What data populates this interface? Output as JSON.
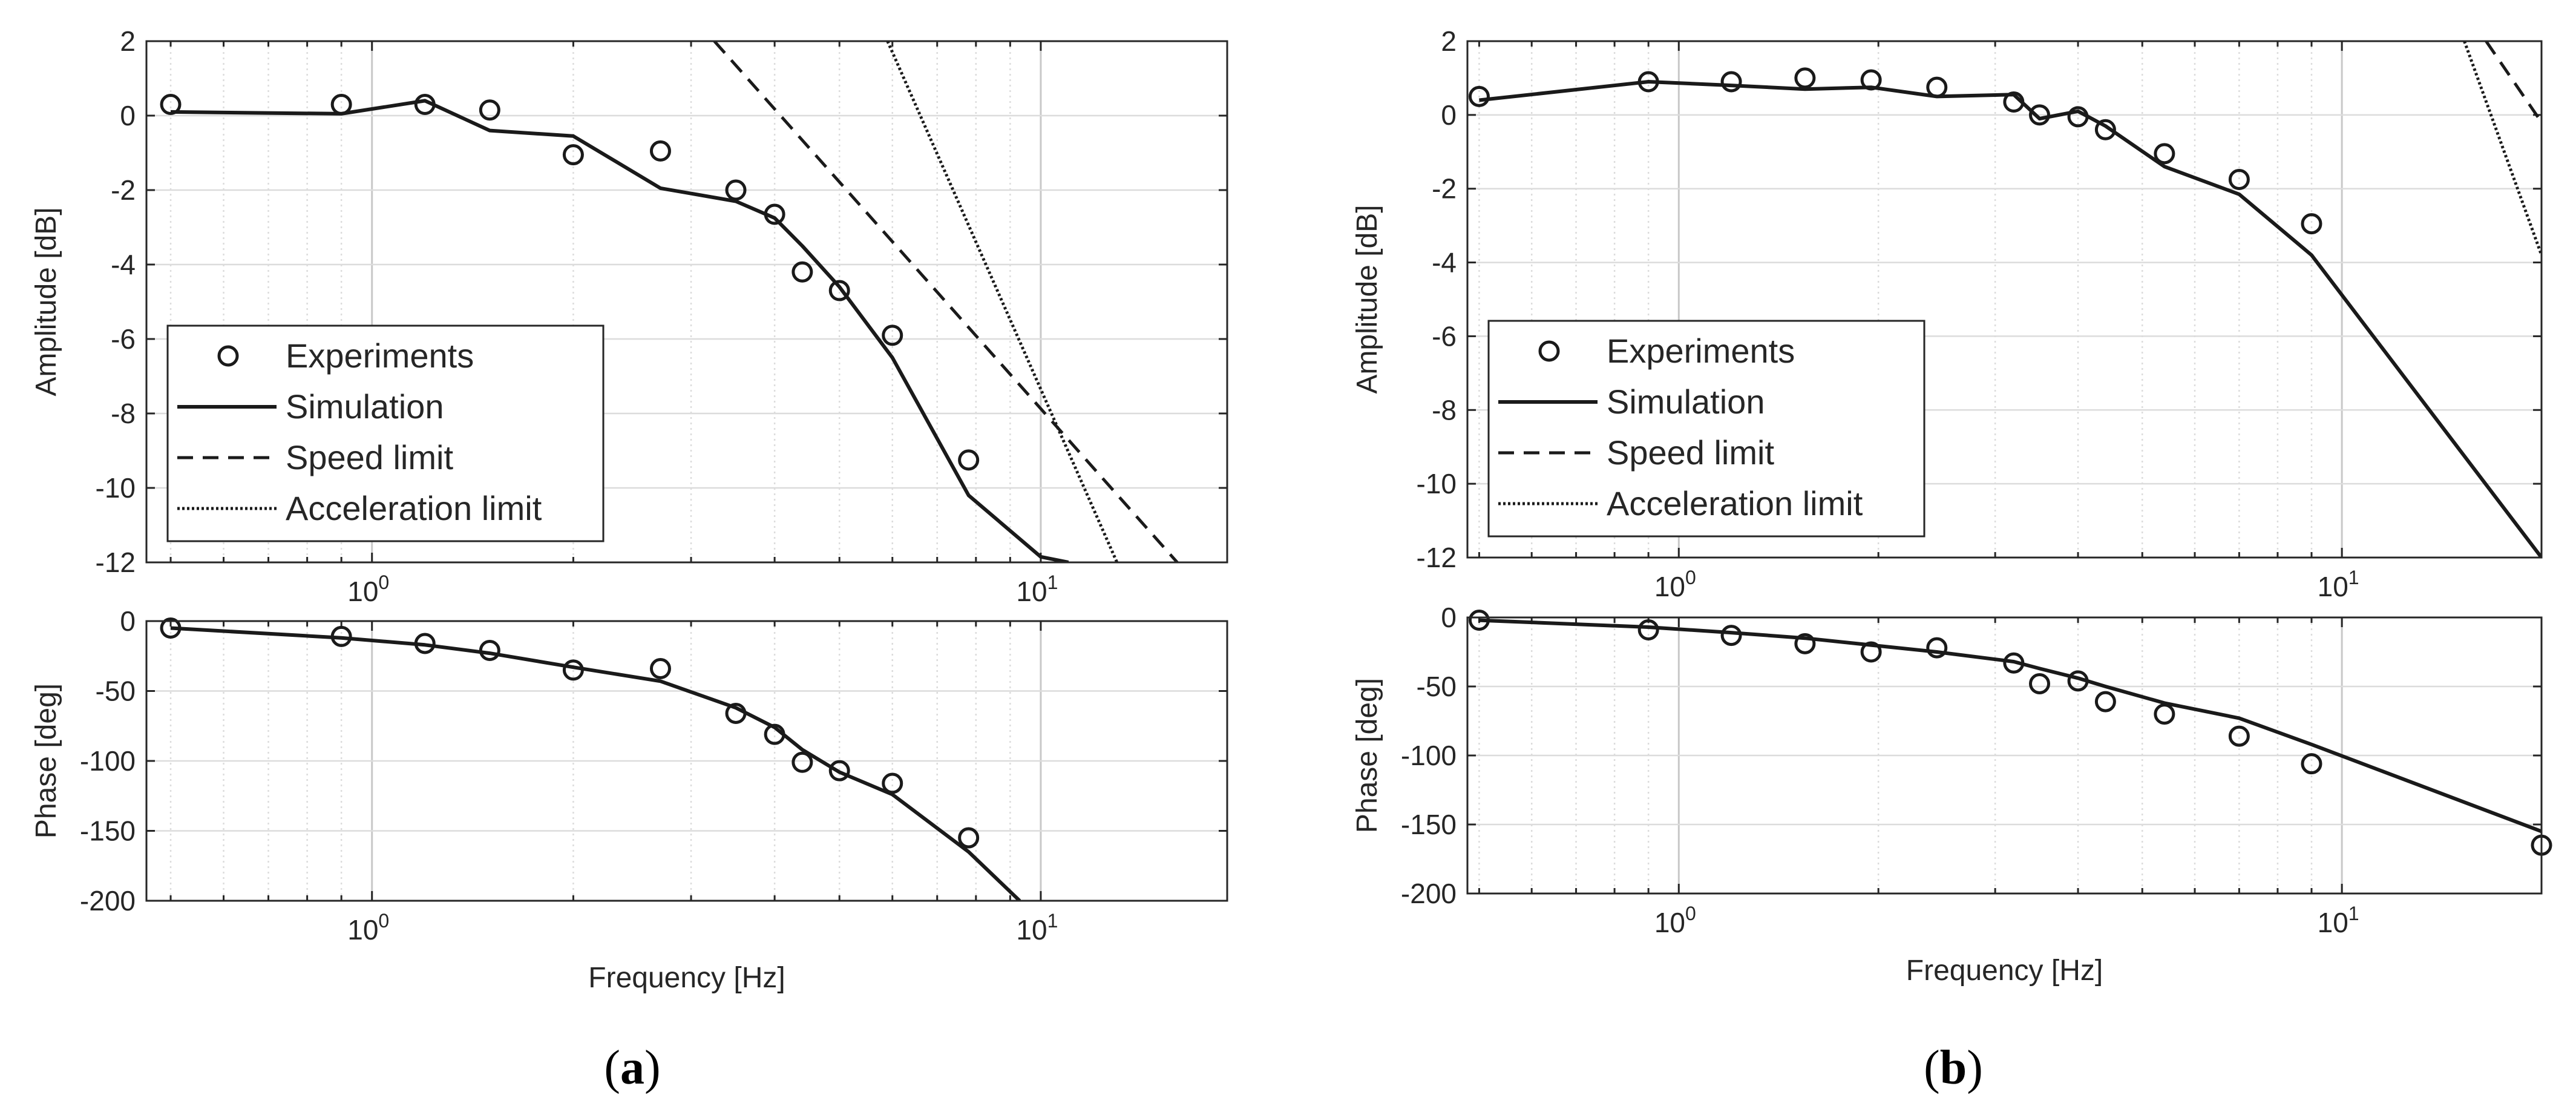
{
  "figure": {
    "panels": [
      {
        "label_open": "(",
        "label_letter": "a",
        "label_close": ")"
      },
      {
        "label_open": "(",
        "label_letter": "b",
        "label_close": ")"
      }
    ]
  },
  "colors": {
    "line": "#1a1a1a",
    "axis": "#262626",
    "grid": "#d9d9d9",
    "background": "#ffffff"
  },
  "chart_data": [
    {
      "id": "a-amplitude",
      "type": "line",
      "panel": "a",
      "xscale": "log",
      "xlim": [
        0.46,
        19
      ],
      "ylim": [
        -12,
        2
      ],
      "yticks": [
        2,
        0,
        -2,
        -4,
        -6,
        -8,
        -10,
        -12
      ],
      "xtick_labels": [
        {
          "base": "10",
          "exp": "0",
          "value": 1
        },
        {
          "base": "10",
          "exp": "1",
          "value": 10
        }
      ],
      "ylabel": "Amplitude [dB]",
      "xlabel": "",
      "grid": true,
      "legend": {
        "position": "bottom-left",
        "entries": [
          {
            "name": "Experiments",
            "style": "marker"
          },
          {
            "name": "Simulation",
            "style": "solid"
          },
          {
            "name": "Speed limit",
            "style": "dashed"
          },
          {
            "name": "Acceleration limit",
            "style": "dotted"
          }
        ]
      },
      "series": [
        {
          "name": "Experiments",
          "style": "marker",
          "x": [
            0.5,
            0.9,
            1.2,
            1.5,
            2.0,
            2.7,
            3.5,
            4.0,
            4.4,
            5.0,
            6.0,
            7.8
          ],
          "y": [
            0.3,
            0.3,
            0.3,
            0.15,
            -1.05,
            -0.95,
            -2.0,
            -2.65,
            -4.2,
            -4.7,
            -5.9,
            -9.25
          ]
        },
        {
          "name": "Simulation",
          "style": "solid",
          "x": [
            0.5,
            0.9,
            1.2,
            1.5,
            2.0,
            2.7,
            3.5,
            4.0,
            4.4,
            5.0,
            6.0,
            7.8,
            10.0,
            11.0
          ],
          "y": [
            0.1,
            0.05,
            0.4,
            -0.4,
            -0.55,
            -1.95,
            -2.3,
            -2.75,
            -3.5,
            -4.6,
            -6.5,
            -10.2,
            -11.85,
            -12.0
          ]
        },
        {
          "name": "Speed limit",
          "style": "dashed",
          "x": [
            3.25,
            16.0
          ],
          "y": [
            2.0,
            -12.0
          ]
        },
        {
          "name": "Acceleration limit",
          "style": "dotted",
          "x": [
            5.9,
            13.0
          ],
          "y": [
            2.0,
            -12.0
          ]
        }
      ]
    },
    {
      "id": "a-phase",
      "type": "line",
      "panel": "a",
      "xscale": "log",
      "xlim": [
        0.46,
        19
      ],
      "ylim": [
        -200,
        0
      ],
      "yticks": [
        0,
        -50,
        -100,
        -150,
        -200
      ],
      "xtick_labels": [
        {
          "base": "10",
          "exp": "0",
          "value": 1
        },
        {
          "base": "10",
          "exp": "1",
          "value": 10
        }
      ],
      "ylabel": "Phase [deg]",
      "xlabel": "Frequency [Hz]",
      "grid": true,
      "series": [
        {
          "name": "Experiments",
          "style": "marker",
          "x": [
            0.5,
            0.9,
            1.2,
            1.5,
            2.0,
            2.7,
            3.5,
            4.0,
            4.4,
            5.0,
            6.0,
            7.8
          ],
          "y": [
            -5,
            -11,
            -16,
            -21,
            -35,
            -34,
            -66,
            -81,
            -101,
            -107,
            -116,
            -155
          ]
        },
        {
          "name": "Simulation",
          "style": "solid",
          "x": [
            0.5,
            0.9,
            1.2,
            1.5,
            2.0,
            2.7,
            3.5,
            4.0,
            4.4,
            5.0,
            6.0,
            7.8,
            9.3
          ],
          "y": [
            -5,
            -12,
            -17,
            -23,
            -33,
            -43,
            -62,
            -76,
            -92,
            -108,
            -124,
            -165,
            -200
          ]
        }
      ]
    },
    {
      "id": "b-amplitude",
      "type": "line",
      "panel": "b",
      "xscale": "log",
      "xlim": [
        0.48,
        20
      ],
      "ylim": [
        -12,
        2
      ],
      "yticks": [
        2,
        0,
        -2,
        -4,
        -6,
        -8,
        -10,
        -12
      ],
      "xtick_labels": [
        {
          "base": "10",
          "exp": "0",
          "value": 1
        },
        {
          "base": "10",
          "exp": "1",
          "value": 10
        }
      ],
      "ylabel": "Amplitude [dB]",
      "xlabel": "",
      "grid": true,
      "legend": {
        "position": "bottom-left",
        "entries": [
          {
            "name": "Experiments",
            "style": "marker"
          },
          {
            "name": "Simulation",
            "style": "solid"
          },
          {
            "name": "Speed limit",
            "style": "dashed"
          },
          {
            "name": "Acceleration limit",
            "style": "dotted"
          }
        ]
      },
      "series": [
        {
          "name": "Experiments",
          "style": "marker",
          "x": [
            0.5,
            0.9,
            1.2,
            1.55,
            1.95,
            2.45,
            3.2,
            3.5,
            4.0,
            4.4,
            5.4,
            7.0,
            9.0
          ],
          "y": [
            0.5,
            0.9,
            0.9,
            1.0,
            0.95,
            0.75,
            0.35,
            0.0,
            -0.05,
            -0.4,
            -1.05,
            -1.75,
            -2.95
          ]
        },
        {
          "name": "Simulation",
          "style": "solid",
          "x": [
            0.5,
            0.9,
            1.2,
            1.55,
            1.95,
            2.45,
            3.2,
            3.5,
            4.0,
            4.4,
            5.4,
            7.0,
            9.0,
            20.0
          ],
          "y": [
            0.4,
            0.9,
            0.8,
            0.7,
            0.75,
            0.5,
            0.55,
            -0.1,
            0.1,
            -0.3,
            -1.4,
            -2.15,
            -3.8,
            -12.0
          ]
        },
        {
          "name": "Speed limit",
          "style": "dashed",
          "x": [
            16.5,
            20.0
          ],
          "y": [
            2.0,
            -0.2
          ]
        },
        {
          "name": "Acceleration limit",
          "style": "dotted",
          "x": [
            15.3,
            20.0
          ],
          "y": [
            2.0,
            -3.8
          ]
        }
      ]
    },
    {
      "id": "b-phase",
      "type": "line",
      "panel": "b",
      "xscale": "log",
      "xlim": [
        0.48,
        20
      ],
      "ylim": [
        -200,
        0
      ],
      "yticks": [
        0,
        -50,
        -100,
        -150,
        -200
      ],
      "xtick_labels": [
        {
          "base": "10",
          "exp": "0",
          "value": 1
        },
        {
          "base": "10",
          "exp": "1",
          "value": 10
        }
      ],
      "ylabel": "Phase [deg]",
      "xlabel": "Frequency [Hz]",
      "grid": true,
      "series": [
        {
          "name": "Experiments",
          "style": "marker",
          "x": [
            0.5,
            0.9,
            1.2,
            1.55,
            1.95,
            2.45,
            3.2,
            3.5,
            4.0,
            4.4,
            5.4,
            7.0,
            9.0,
            20.0
          ],
          "y": [
            -2,
            -9,
            -13,
            -19,
            -25,
            -22,
            -33,
            -48,
            -46,
            -61,
            -70,
            -86,
            -106,
            -165
          ]
        },
        {
          "name": "Simulation",
          "style": "solid",
          "x": [
            0.5,
            0.9,
            1.2,
            1.55,
            1.95,
            2.45,
            3.2,
            3.5,
            4.0,
            4.4,
            5.4,
            7.0,
            9.0,
            20.0
          ],
          "y": [
            -2,
            -7,
            -11,
            -15,
            -20,
            -25,
            -32,
            -37,
            -44,
            -50,
            -62,
            -73,
            -92,
            -155
          ]
        }
      ]
    }
  ]
}
